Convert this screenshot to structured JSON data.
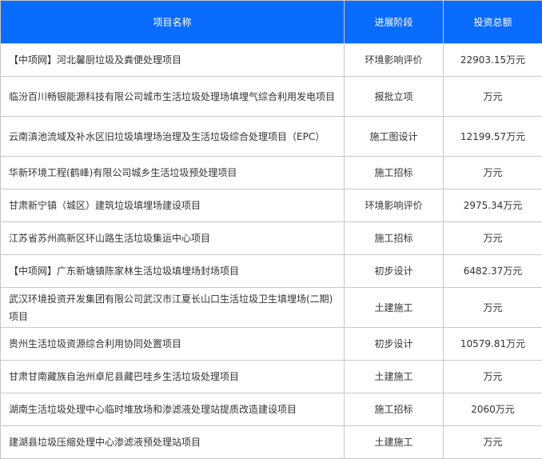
{
  "header": {
    "name": "项目名称",
    "stage": "进展阶段",
    "amount": "投资总额"
  },
  "colors": {
    "header_bg": "#0a6cff",
    "border": "#c8c8c8",
    "text": "#333333"
  },
  "rows": [
    {
      "name": "【中项网】河北馨厨垃圾及粪便处理项目",
      "stage": "环境影响评价",
      "amount": "22903.15万元"
    },
    {
      "name": "临汾百川畅银能源科技有限公司城市生活垃圾处理场填埋气综合利用发电项目",
      "stage": "报批立项",
      "amount": "万元"
    },
    {
      "name": "云南滇池流域及补水区旧垃圾填埋场治理及生活垃圾综合处理项目（EPC）",
      "stage": "施工图设计",
      "amount": "12199.57万元"
    },
    {
      "name": "华新环境工程(鹤峰)有限公司城乡生活垃圾预处理项目",
      "stage": "施工招标",
      "amount": "万元"
    },
    {
      "name": "甘肃新宁镇（城区）建筑垃圾填埋场建设项目",
      "stage": "环境影响评价",
      "amount": "2975.34万元"
    },
    {
      "name": "江苏省苏州高新区环山路生活垃圾集运中心项目",
      "stage": "施工招标",
      "amount": "万元"
    },
    {
      "name": "【中项网】广东新塘镇陈家林生活垃圾填埋场封场项目",
      "stage": "初步设计",
      "amount": "6482.37万元"
    },
    {
      "name": "武汉环境投资开发集团有限公司武汉市江夏长山口生活垃圾卫生填埋场(二期)项目",
      "stage": "土建施工",
      "amount": "万元"
    },
    {
      "name": "贵州生活垃圾资源综合利用协同处置项目",
      "stage": "初步设计",
      "amount": "10579.81万元"
    },
    {
      "name": "甘肃甘南藏族自治州卓尼县藏巴哇乡生活垃圾处理项目",
      "stage": "土建施工",
      "amount": "万元"
    },
    {
      "name": "湖南生活垃圾处理中心临时堆放场和渗滤液处理站提质改造建设项目",
      "stage": "施工招标",
      "amount": "2060万元"
    },
    {
      "name": "建湖县垃圾压缩处理中心渗滤液预处理站项目",
      "stage": "土建施工",
      "amount": "万元"
    }
  ]
}
